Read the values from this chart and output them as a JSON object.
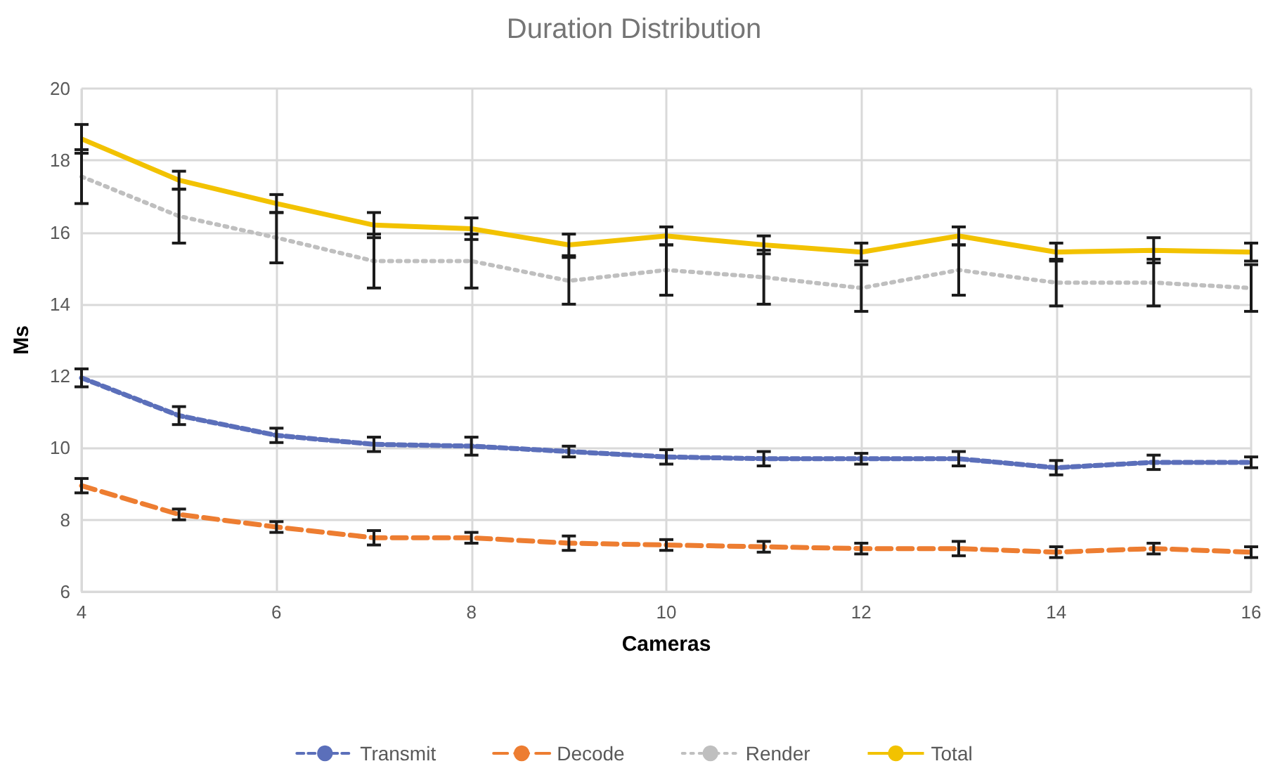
{
  "chart_data": {
    "type": "line",
    "title": "Duration Distribution",
    "xlabel": "Cameras",
    "ylabel": "Ms",
    "x": [
      4,
      5,
      6,
      7,
      8,
      9,
      10,
      11,
      12,
      13,
      14,
      15,
      16
    ],
    "series": [
      {
        "name": "Transmit",
        "color": "#5b6fba",
        "line_style": "dashed",
        "values": [
          11.95,
          10.9,
          10.35,
          10.1,
          10.05,
          9.9,
          9.75,
          9.7,
          9.7,
          9.7,
          9.45,
          9.6,
          9.6
        ],
        "errors": [
          0.25,
          0.25,
          0.2,
          0.2,
          0.25,
          0.15,
          0.2,
          0.2,
          0.15,
          0.2,
          0.2,
          0.2,
          0.15
        ]
      },
      {
        "name": "Decode",
        "color": "#ed7d31",
        "line_style": "longdash",
        "values": [
          8.95,
          8.15,
          7.8,
          7.5,
          7.5,
          7.35,
          7.3,
          7.25,
          7.2,
          7.2,
          7.1,
          7.2,
          7.1
        ],
        "errors": [
          0.2,
          0.15,
          0.15,
          0.2,
          0.15,
          0.2,
          0.15,
          0.15,
          0.15,
          0.2,
          0.15,
          0.15,
          0.15
        ]
      },
      {
        "name": "Render",
        "color": "#bfbfbf",
        "line_style": "dotted",
        "values": [
          17.55,
          16.45,
          15.85,
          15.2,
          15.2,
          14.65,
          14.95,
          14.75,
          14.45,
          14.95,
          14.6,
          14.6,
          14.45
        ],
        "errors": [
          0.75,
          0.75,
          0.7,
          0.75,
          0.75,
          0.65,
          0.7,
          0.75,
          0.65,
          0.7,
          0.65,
          0.65,
          0.65
        ]
      },
      {
        "name": "Total",
        "color": "#f2c200",
        "line_style": "solid",
        "values": [
          18.6,
          17.45,
          16.8,
          16.2,
          16.1,
          15.65,
          15.9,
          15.65,
          15.45,
          15.9,
          15.45,
          15.5,
          15.45
        ],
        "errors": [
          0.4,
          0.25,
          0.25,
          0.35,
          0.3,
          0.3,
          0.25,
          0.25,
          0.25,
          0.25,
          0.25,
          0.35,
          0.25
        ]
      }
    ],
    "xlim": [
      4,
      16
    ],
    "xticks": [
      4,
      6,
      8,
      10,
      12,
      14,
      16
    ],
    "ylim": [
      6,
      20
    ],
    "yticks": [
      6,
      8,
      10,
      12,
      14,
      16,
      18,
      20
    ],
    "grid": true,
    "legend": "bottom",
    "marker": "none"
  }
}
